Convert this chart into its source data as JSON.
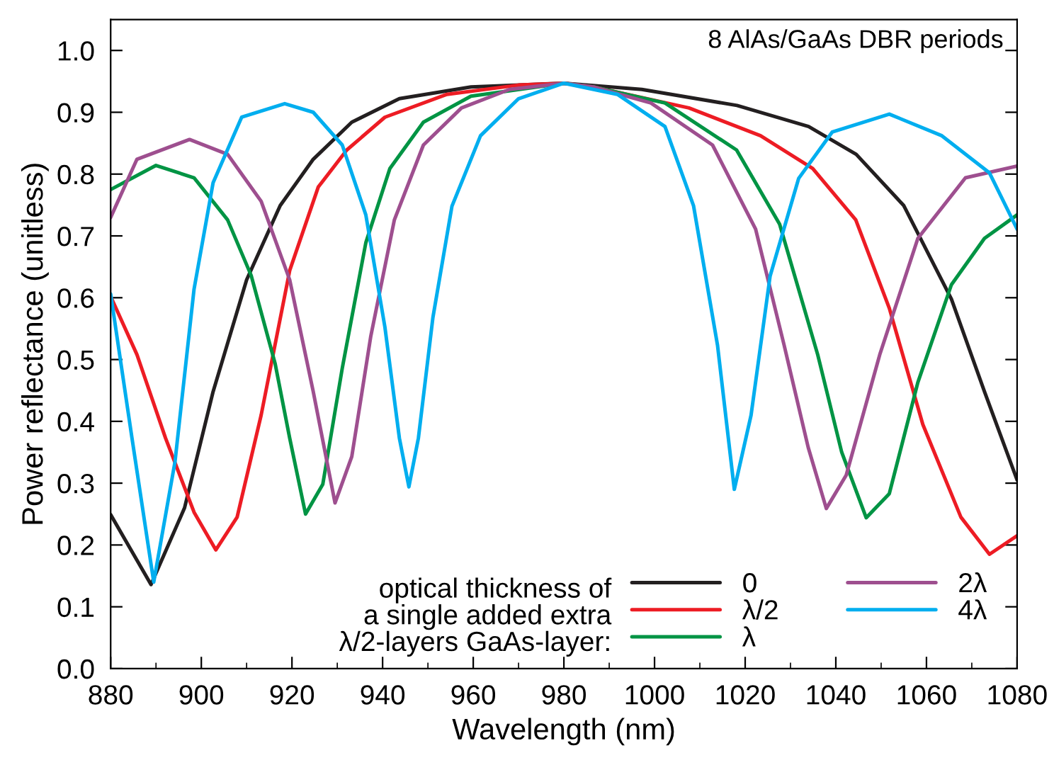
{
  "chart_data": {
    "type": "line",
    "xlabel": "Wavelength (nm)",
    "ylabel": "Power reflectance (unitless)",
    "legend_title": "optical thickness of\na single added extra\nλ/2-layers GaAs-layer:",
    "annotations": [
      "8 AlAs/GaAs DBR periods"
    ],
    "xlim": [
      880,
      1080
    ],
    "ylim": [
      0,
      1.05
    ],
    "xticks": [
      880,
      900,
      920,
      940,
      960,
      980,
      1000,
      1020,
      1040,
      1060,
      1080
    ],
    "yticks": [
      {
        "value": 0,
        "label": "0.0"
      },
      0.1,
      0.2,
      0.3,
      0.4,
      0.5,
      0.6,
      0.7,
      0.8,
      0.9,
      {
        "value": 1,
        "label": "1.0"
      }
    ],
    "grid": false,
    "legend": "bottom right",
    "marker": "none",
    "line_style": "solid",
    "series": [
      {
        "name": "0",
        "color": "#231f20",
        "x": [
          880,
          888.9,
          896.3,
          902.6,
          910,
          917.4,
          924.7,
          933.2,
          943.7,
          959.5,
          980,
          997.2,
          1018.2,
          1034,
          1044.5,
          1055,
          1065.5,
          1072.8,
          1080
        ],
        "values": [
          0.249,
          0.136,
          0.26,
          0.448,
          0.629,
          0.749,
          0.824,
          0.884,
          0.922,
          0.941,
          0.947,
          0.937,
          0.911,
          0.877,
          0.832,
          0.749,
          0.598,
          0.448,
          0.305
        ]
      },
      {
        "name": "λ/2",
        "color": "#ed1c24",
        "x": [
          880,
          885.8,
          892.1,
          898.4,
          903.2,
          907.9,
          913.2,
          919.5,
          925.8,
          932.1,
          940.5,
          954.2,
          970,
          980,
          986.5,
          1007.6,
          1023.4,
          1034.9,
          1044.4,
          1051.8,
          1059.2,
          1067.6,
          1073.9,
          1080
        ],
        "values": [
          0.602,
          0.508,
          0.373,
          0.253,
          0.192,
          0.245,
          0.41,
          0.644,
          0.779,
          0.839,
          0.892,
          0.929,
          0.944,
          0.947,
          0.941,
          0.907,
          0.862,
          0.809,
          0.726,
          0.583,
          0.395,
          0.245,
          0.185,
          0.215
        ]
      },
      {
        "name": "λ",
        "color": "#009444",
        "x": [
          880,
          890,
          898.4,
          905.8,
          911,
          916.3,
          919.5,
          923,
          926.8,
          931.1,
          936.3,
          941.6,
          949,
          959.5,
          980,
          986.5,
          1002.3,
          1018.1,
          1027.6,
          1036,
          1041.3,
          1046.7,
          1051.8,
          1058.1,
          1065.5,
          1072.8,
          1080
        ],
        "values": [
          0.775,
          0.814,
          0.794,
          0.726,
          0.636,
          0.493,
          0.373,
          0.25,
          0.298,
          0.486,
          0.689,
          0.809,
          0.884,
          0.926,
          0.947,
          0.941,
          0.915,
          0.839,
          0.719,
          0.508,
          0.35,
          0.244,
          0.283,
          0.463,
          0.621,
          0.696,
          0.734
        ]
      },
      {
        "name": "2λ",
        "color": "#9e4f8f",
        "x": [
          880,
          885.8,
          897.4,
          905.8,
          913.2,
          919.5,
          924.7,
          929.5,
          933.2,
          937.4,
          942.6,
          949,
          957.4,
          968,
          980,
          986.5,
          999.2,
          1012.8,
          1022.3,
          1028.6,
          1033.9,
          1037.9,
          1042.3,
          1049.7,
          1058.1,
          1068.6,
          1080
        ],
        "values": [
          0.73,
          0.824,
          0.856,
          0.832,
          0.756,
          0.629,
          0.448,
          0.268,
          0.343,
          0.538,
          0.726,
          0.847,
          0.907,
          0.937,
          0.947,
          0.941,
          0.915,
          0.847,
          0.711,
          0.523,
          0.358,
          0.259,
          0.313,
          0.508,
          0.696,
          0.794,
          0.813
        ]
      },
      {
        "name": "4λ",
        "color": "#00aeef",
        "x": [
          880,
          884.7,
          889.5,
          894.2,
          898.4,
          902.6,
          908.9,
          918.4,
          924.7,
          931.1,
          936.3,
          940.5,
          943.7,
          945.8,
          947.9,
          951.1,
          955.3,
          961.6,
          970,
          980,
          991.8,
          1002.3,
          1008.6,
          1013.9,
          1017.6,
          1021.3,
          1025.5,
          1031.8,
          1039.2,
          1051.8,
          1063.4,
          1073.9,
          1080
        ],
        "values": [
          0.606,
          0.373,
          0.14,
          0.335,
          0.614,
          0.786,
          0.892,
          0.914,
          0.9,
          0.847,
          0.734,
          0.553,
          0.373,
          0.294,
          0.373,
          0.568,
          0.748,
          0.862,
          0.922,
          0.947,
          0.929,
          0.877,
          0.749,
          0.523,
          0.29,
          0.41,
          0.635,
          0.793,
          0.868,
          0.897,
          0.862,
          0.802,
          0.711
        ]
      }
    ]
  }
}
